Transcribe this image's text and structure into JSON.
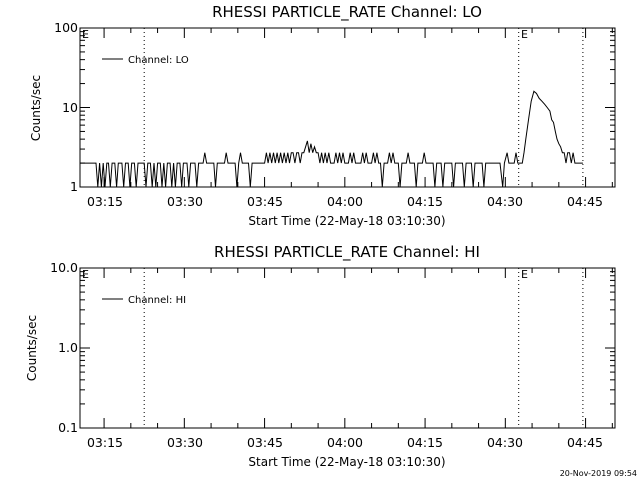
{
  "footer": {
    "timestamp": "20-Nov-2019 09:54"
  },
  "chart_data": [
    {
      "type": "line",
      "title": "RHESSI PARTICLE_RATE Channel: LO",
      "xlabel": "Start Time (22-May-18 03:10:30)",
      "ylabel": "Counts/sec",
      "yscale": "log",
      "ylim": [
        1,
        100
      ],
      "xlim": [
        "03:10:30",
        "04:50:30"
      ],
      "xticks": [
        "03:15",
        "03:30",
        "03:45",
        "04:00",
        "04:15",
        "04:30",
        "04:45"
      ],
      "yticks": [
        "1",
        "10",
        "100"
      ],
      "grid": false,
      "legend_position": "top-left",
      "vlines": [
        "03:22:30",
        "04:32:30",
        "04:44:30"
      ],
      "markers": [
        {
          "label": "E",
          "x": "03:10:30"
        },
        {
          "label": "E",
          "x": "04:32:30"
        }
      ],
      "series": [
        {
          "name": "Channel: LO",
          "points": [
            [
              "03:10:30",
              2
            ],
            [
              "03:13:30",
              2
            ],
            [
              "03:13:50",
              1
            ],
            [
              "03:14:10",
              2
            ],
            [
              "03:14:30",
              1
            ],
            [
              "03:14:50",
              2
            ],
            [
              "03:15:10",
              1
            ],
            [
              "03:15:30",
              2
            ],
            [
              "03:15:50",
              2
            ],
            [
              "03:16:10",
              1
            ],
            [
              "03:16:30",
              2
            ],
            [
              "03:17:00",
              2
            ],
            [
              "03:17:20",
              1
            ],
            [
              "03:17:40",
              2
            ],
            [
              "03:18:20",
              2
            ],
            [
              "03:18:40",
              1
            ],
            [
              "03:19:00",
              2
            ],
            [
              "03:19:30",
              2
            ],
            [
              "03:19:50",
              1
            ],
            [
              "03:20:10",
              2
            ],
            [
              "03:20:40",
              2
            ],
            [
              "03:21:00",
              1
            ],
            [
              "03:21:20",
              2
            ],
            [
              "03:22:30",
              2
            ],
            [
              "03:22:50",
              1
            ],
            [
              "03:23:10",
              2
            ],
            [
              "03:23:40",
              2
            ],
            [
              "03:24:00",
              1
            ],
            [
              "03:24:20",
              2
            ],
            [
              "03:24:40",
              1
            ],
            [
              "03:25:00",
              2
            ],
            [
              "03:25:30",
              2
            ],
            [
              "03:25:50",
              1
            ],
            [
              "03:26:10",
              2
            ],
            [
              "03:26:30",
              1
            ],
            [
              "03:26:50",
              2
            ],
            [
              "03:27:20",
              2
            ],
            [
              "03:27:40",
              1
            ],
            [
              "03:28:00",
              2
            ],
            [
              "03:28:20",
              1
            ],
            [
              "03:28:40",
              2
            ],
            [
              "03:29:10",
              2
            ],
            [
              "03:29:30",
              1
            ],
            [
              "03:29:50",
              2
            ],
            [
              "03:30:30",
              2
            ],
            [
              "03:30:50",
              1
            ],
            [
              "03:31:10",
              2
            ],
            [
              "03:32:00",
              2
            ],
            [
              "03:32:20",
              1
            ],
            [
              "03:32:40",
              2
            ],
            [
              "03:33:30",
              2
            ],
            [
              "03:33:50",
              2.7
            ],
            [
              "03:34:10",
              2
            ],
            [
              "03:35:30",
              2
            ],
            [
              "03:35:50",
              1
            ],
            [
              "03:36:10",
              2
            ],
            [
              "03:37:30",
              2
            ],
            [
              "03:37:50",
              2.7
            ],
            [
              "03:38:10",
              2
            ],
            [
              "03:39:30",
              2
            ],
            [
              "03:39:50",
              1
            ],
            [
              "03:40:10",
              2
            ],
            [
              "03:40:30",
              2.7
            ],
            [
              "03:40:50",
              2
            ],
            [
              "03:42:00",
              2
            ],
            [
              "03:42:20",
              1
            ],
            [
              "03:42:40",
              2
            ],
            [
              "03:45:00",
              2
            ],
            [
              "03:45:20",
              2.7
            ],
            [
              "03:45:40",
              2
            ],
            [
              "03:46:00",
              2.7
            ],
            [
              "03:46:20",
              2
            ],
            [
              "03:46:40",
              2.7
            ],
            [
              "03:47:00",
              2
            ],
            [
              "03:47:20",
              2.7
            ],
            [
              "03:47:40",
              2
            ],
            [
              "03:48:00",
              2.7
            ],
            [
              "03:48:20",
              2
            ],
            [
              "03:48:40",
              2.7
            ],
            [
              "03:49:00",
              2
            ],
            [
              "03:49:20",
              2.7
            ],
            [
              "03:49:40",
              2
            ],
            [
              "03:50:00",
              2.7
            ],
            [
              "03:50:20",
              2.7
            ],
            [
              "03:50:40",
              2
            ],
            [
              "03:51:00",
              2.7
            ],
            [
              "03:51:20",
              2.7
            ],
            [
              "03:51:40",
              2
            ],
            [
              "03:52:00",
              2.7
            ],
            [
              "03:52:20",
              2.7
            ],
            [
              "03:52:40",
              3.2
            ],
            [
              "03:53:00",
              3.8
            ],
            [
              "03:53:20",
              2.7
            ],
            [
              "03:53:40",
              3.5
            ],
            [
              "03:54:00",
              2.7
            ],
            [
              "03:54:20",
              3.2
            ],
            [
              "03:54:40",
              2.7
            ],
            [
              "03:55:00",
              2.7
            ],
            [
              "03:55:20",
              2
            ],
            [
              "03:55:40",
              2.7
            ],
            [
              "03:56:00",
              2
            ],
            [
              "03:56:20",
              2.7
            ],
            [
              "03:56:40",
              2
            ],
            [
              "03:57:00",
              2.7
            ],
            [
              "03:57:20",
              2
            ],
            [
              "03:58:00",
              2
            ],
            [
              "03:58:20",
              2.7
            ],
            [
              "03:58:40",
              2
            ],
            [
              "03:59:00",
              2.7
            ],
            [
              "03:59:20",
              2
            ],
            [
              "03:59:40",
              2.7
            ],
            [
              "04:00:00",
              2
            ],
            [
              "04:00:40",
              2
            ],
            [
              "04:01:00",
              2.7
            ],
            [
              "04:01:20",
              2
            ],
            [
              "04:01:40",
              2.7
            ],
            [
              "04:02:00",
              2
            ],
            [
              "04:03:00",
              2
            ],
            [
              "04:03:20",
              2.7
            ],
            [
              "04:03:40",
              2
            ],
            [
              "04:04:00",
              2.7
            ],
            [
              "04:04:20",
              2
            ],
            [
              "04:05:00",
              2
            ],
            [
              "04:05:20",
              2.7
            ],
            [
              "04:05:40",
              2
            ],
            [
              "04:06:00",
              2.7
            ],
            [
              "04:06:20",
              2
            ],
            [
              "04:06:40",
              2
            ],
            [
              "04:07:00",
              1
            ],
            [
              "04:07:20",
              2
            ],
            [
              "04:08:00",
              2
            ],
            [
              "04:08:20",
              2.7
            ],
            [
              "04:08:40",
              2
            ],
            [
              "04:09:00",
              2.7
            ],
            [
              "04:09:20",
              2
            ],
            [
              "04:10:00",
              2
            ],
            [
              "04:10:20",
              1
            ],
            [
              "04:10:40",
              2
            ],
            [
              "04:11:30",
              2
            ],
            [
              "04:11:50",
              2.7
            ],
            [
              "04:12:10",
              2
            ],
            [
              "04:13:00",
              2
            ],
            [
              "04:13:20",
              1
            ],
            [
              "04:13:40",
              2
            ],
            [
              "04:14:30",
              2
            ],
            [
              "04:14:50",
              2.7
            ],
            [
              "04:15:10",
              2
            ],
            [
              "04:16:30",
              2
            ],
            [
              "04:16:50",
              1
            ],
            [
              "04:17:10",
              2
            ],
            [
              "04:18:00",
              2
            ],
            [
              "04:18:20",
              1
            ],
            [
              "04:18:40",
              2
            ],
            [
              "04:20:00",
              2
            ],
            [
              "04:20:20",
              1
            ],
            [
              "04:20:40",
              2
            ],
            [
              "04:22:00",
              2
            ],
            [
              "04:22:20",
              1
            ],
            [
              "04:22:40",
              2
            ],
            [
              "04:23:40",
              2
            ],
            [
              "04:24:00",
              1
            ],
            [
              "04:24:20",
              2
            ],
            [
              "04:25:40",
              2
            ],
            [
              "04:26:00",
              1
            ],
            [
              "04:26:20",
              2
            ],
            [
              "04:29:00",
              2
            ],
            [
              "04:29:30",
              1
            ],
            [
              "04:29:50",
              2
            ],
            [
              "04:30:20",
              2.7
            ],
            [
              "04:30:40",
              2
            ],
            [
              "04:31:40",
              2
            ],
            [
              "04:32:00",
              2.7
            ],
            [
              "04:32:20",
              2
            ],
            [
              "04:33:10",
              2
            ],
            [
              "04:33:30",
              2.7
            ],
            [
              "04:33:50",
              4
            ],
            [
              "04:34:20",
              7
            ],
            [
              "04:34:50",
              12
            ],
            [
              "04:35:20",
              16
            ],
            [
              "04:35:50",
              15
            ],
            [
              "04:36:20",
              13
            ],
            [
              "04:36:50",
              12
            ],
            [
              "04:37:20",
              11
            ],
            [
              "04:37:50",
              10
            ],
            [
              "04:38:20",
              9
            ],
            [
              "04:38:40",
              7
            ],
            [
              "04:39:00",
              6.5
            ],
            [
              "04:39:20",
              5
            ],
            [
              "04:39:40",
              4
            ],
            [
              "04:40:00",
              3.5
            ],
            [
              "04:40:20",
              3.2
            ],
            [
              "04:40:40",
              2.7
            ],
            [
              "04:41:00",
              2.7
            ],
            [
              "04:41:20",
              2
            ],
            [
              "04:41:40",
              2.7
            ],
            [
              "04:42:00",
              2.7
            ],
            [
              "04:42:20",
              2
            ],
            [
              "04:42:40",
              2.7
            ],
            [
              "04:43:00",
              2
            ],
            [
              "04:44:30",
              2
            ]
          ]
        }
      ]
    },
    {
      "type": "line",
      "title": "RHESSI PARTICLE_RATE Channel: HI",
      "xlabel": "Start Time (22-May-18 03:10:30)",
      "ylabel": "Counts/sec",
      "yscale": "log",
      "ylim": [
        0.1,
        10
      ],
      "xlim": [
        "03:10:30",
        "04:50:30"
      ],
      "xticks": [
        "03:15",
        "03:30",
        "03:45",
        "04:00",
        "04:15",
        "04:30",
        "04:45"
      ],
      "yticks": [
        "0.1",
        "1.0",
        "10.0"
      ],
      "grid": false,
      "legend_position": "top-left",
      "vlines": [
        "03:22:30",
        "04:32:30",
        "04:44:30"
      ],
      "markers": [
        {
          "label": "E",
          "x": "03:10:30"
        },
        {
          "label": "E",
          "x": "04:32:30"
        }
      ],
      "series": [
        {
          "name": "Channel: HI",
          "points": []
        }
      ]
    }
  ]
}
